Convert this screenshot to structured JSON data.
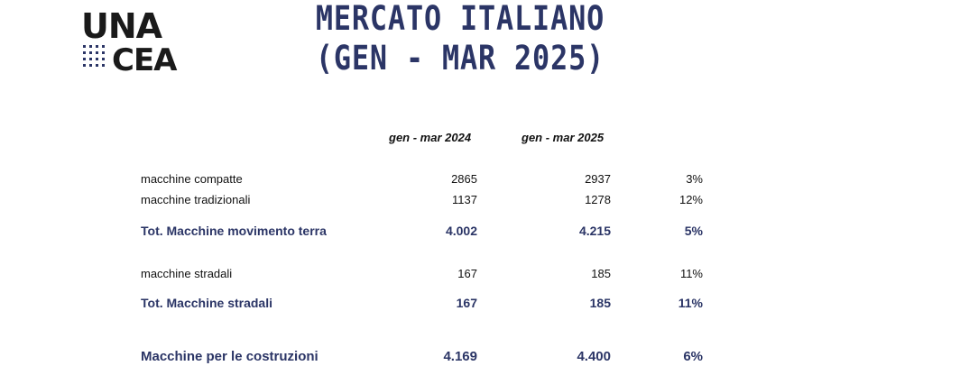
{
  "logo": {
    "top_text": "UNA",
    "bottom_text": "CEA"
  },
  "title": {
    "line1": "MERCATO ITALIANO",
    "line2": "(GEN - MAR 2025)"
  },
  "columns": {
    "col1": "gen - mar 2024",
    "col2": "gen - mar 2025"
  },
  "rows": [
    {
      "label": "macchine compatte",
      "v2024": "2865",
      "v2025": "2937",
      "change": "3%"
    },
    {
      "label": "macchine tradizionali",
      "v2024": "1137",
      "v2025": "1278",
      "change": "12%"
    },
    {
      "label": "Tot. Macchine movimento terra",
      "v2024": "4.002",
      "v2025": "4.215",
      "change": "5%"
    },
    {
      "label": "macchine stradali",
      "v2024": "167",
      "v2025": "185",
      "change": "11%"
    },
    {
      "label": "Tot. Macchine stradali",
      "v2024": "167",
      "v2025": "185",
      "change": "11%"
    },
    {
      "label": "Macchine per le costruzioni",
      "v2024": "4.169",
      "v2025": "4.400",
      "change": "6%"
    }
  ],
  "colors": {
    "accent": "#2b3566",
    "text": "#111111"
  }
}
